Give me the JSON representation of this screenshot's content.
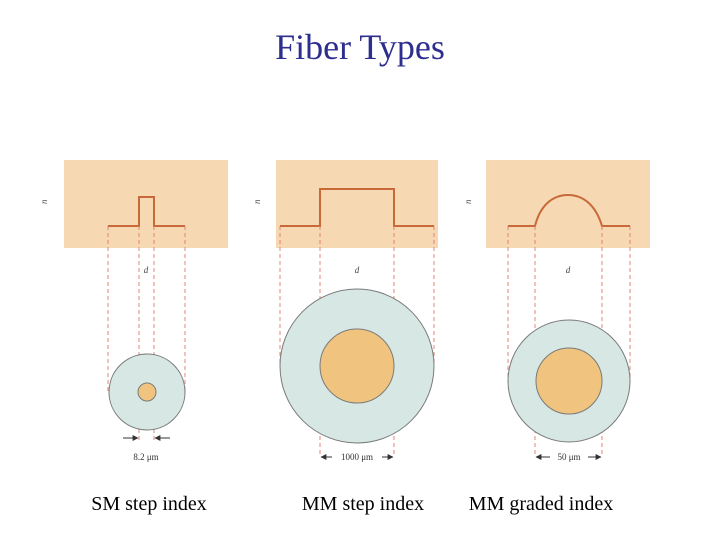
{
  "title": "Fiber Types",
  "colors": {
    "title": "#2e2e8f",
    "profile_bg": "#f6d9b3",
    "profile_line": "#c8693a",
    "cladding": "#d6e7e4",
    "core": "#f0c47f",
    "outline": "#7a7a7a",
    "guide_line": "#e07a6a"
  },
  "fibers": [
    {
      "caption": "SM step index",
      "profile": "step",
      "axis_n": "n",
      "axis_d": "d",
      "dimension_label": "8.2 μm"
    },
    {
      "caption": "MM step index",
      "profile": "step",
      "axis_n": "n",
      "axis_d": "d",
      "dimension_label": "1000 μm"
    },
    {
      "caption": "MM graded index",
      "profile": "graded",
      "axis_n": "n",
      "axis_d": "d",
      "dimension_label": "50 μm"
    }
  ]
}
